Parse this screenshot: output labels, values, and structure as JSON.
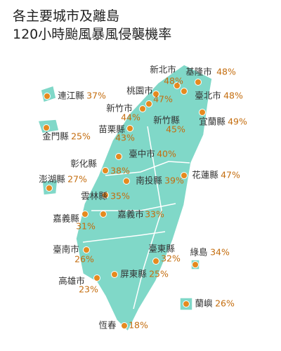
{
  "title": [
    "各主要城市及離島",
    "120小時颱風暴風侵襲機率"
  ],
  "regions": [
    {
      "name": "新北市",
      "percent": "48%"
    },
    {
      "name": "基隆市",
      "percent": "48%"
    },
    {
      "name": "桃園市",
      "percent": "47%"
    },
    {
      "name": "臺北市",
      "percent": "48%"
    },
    {
      "name": "新竹市",
      "percent": "44%"
    },
    {
      "name": "新竹縣",
      "percent": "45%"
    },
    {
      "name": "宜蘭縣",
      "percent": "49%"
    },
    {
      "name": "連江縣",
      "percent": "37%"
    },
    {
      "name": "苗栗縣",
      "percent": "43%"
    },
    {
      "name": "金門縣",
      "percent": "25%"
    },
    {
      "name": "臺中市",
      "percent": "40%"
    },
    {
      "name": "彰化縣",
      "percent": "38%"
    },
    {
      "name": "澎湖縣",
      "percent": "27%"
    },
    {
      "name": "南投縣",
      "percent": "39%"
    },
    {
      "name": "花蓮縣",
      "percent": "47%"
    },
    {
      "name": "雲林縣",
      "percent": "35%"
    },
    {
      "name": "嘉義縣",
      "percent": "31%"
    },
    {
      "name": "嘉義市",
      "percent": "33%"
    },
    {
      "name": "臺南市",
      "percent": "26%"
    },
    {
      "name": "臺東縣",
      "percent": "32%"
    },
    {
      "name": "綠島",
      "percent": "34%"
    },
    {
      "name": "屏東縣",
      "percent": "25%"
    },
    {
      "name": "高雄市",
      "percent": "23%"
    },
    {
      "name": "蘭嶼",
      "percent": "26%"
    },
    {
      "name": "恆春",
      "percent": "18%"
    }
  ]
}
